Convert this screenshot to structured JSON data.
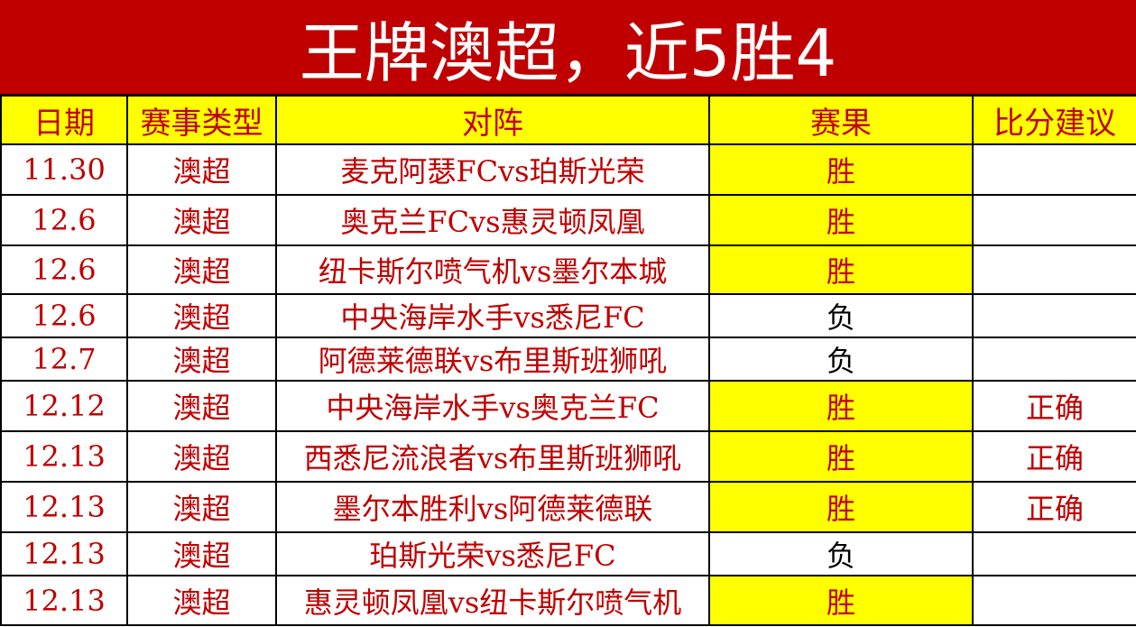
{
  "title": "王牌澳超，近5胜4",
  "headers": [
    "日期",
    "赛事类型",
    "对阵",
    "赛果",
    "比分建议"
  ],
  "colors": {
    "title_bg": "#c00000",
    "header_bg": "#ffff00",
    "text": "#c00000",
    "win_bg": "#ffff00"
  },
  "rows": [
    {
      "date": "11.30",
      "type": "澳超",
      "match": "麦克阿瑟FCvs珀斯光荣",
      "result": "胜",
      "advice": ""
    },
    {
      "date": "12.6",
      "type": "澳超",
      "match": "奥克兰FCvs惠灵顿凤凰",
      "result": "胜",
      "advice": ""
    },
    {
      "date": "12.6",
      "type": "澳超",
      "match": "纽卡斯尔喷气机vs墨尔本城",
      "result": "胜",
      "advice": ""
    },
    {
      "date": "12.6",
      "type": "澳超",
      "match": "中央海岸水手vs悉尼FC",
      "result": "负",
      "advice": ""
    },
    {
      "date": "12.7",
      "type": "澳超",
      "match": "阿德莱德联vs布里斯班狮吼",
      "result": "负",
      "advice": ""
    },
    {
      "date": "12.12",
      "type": "澳超",
      "match": "中央海岸水手vs奥克兰FC",
      "result": "胜",
      "advice": "正确"
    },
    {
      "date": "12.13",
      "type": "澳超",
      "match": "西悉尼流浪者vs布里斯班狮吼",
      "result": "胜",
      "advice": "正确"
    },
    {
      "date": "12.13",
      "type": "澳超",
      "match": "墨尔本胜利vs阿德莱德联",
      "result": "胜",
      "advice": "正确"
    },
    {
      "date": "12.13",
      "type": "澳超",
      "match": "珀斯光荣vs悉尼FC",
      "result": "负",
      "advice": ""
    },
    {
      "date": "12.13",
      "type": "澳超",
      "match": "惠灵顿凤凰vs纽卡斯尔喷气机",
      "result": "胜",
      "advice": ""
    }
  ]
}
